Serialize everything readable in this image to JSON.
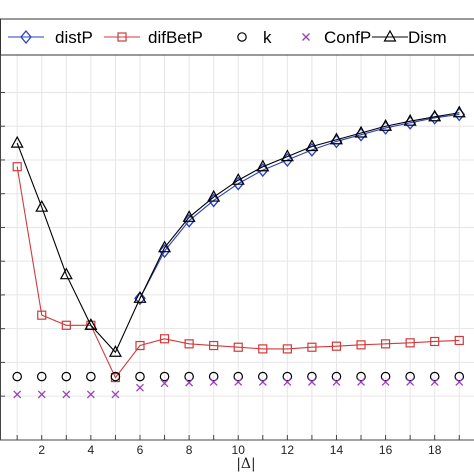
{
  "chart_data": {
    "type": "line",
    "xlabel": "|Δ|",
    "ylabel": "",
    "title": "",
    "xlim": [
      0.3,
      19.6
    ],
    "ylim": [
      -0.03,
      1.12
    ],
    "x_ticks": [
      2,
      4,
      6,
      8,
      10,
      12,
      14,
      16,
      18
    ],
    "x_tick_labels": [
      "2",
      "4",
      "6",
      "8",
      "10",
      "12",
      "14",
      "16",
      "18"
    ],
    "grid": true,
    "legend_position": "top",
    "series": [
      {
        "name": "distP",
        "color": "#2a3fc4",
        "marker": "diamond",
        "x": [
          1,
          2,
          3,
          4,
          5,
          6,
          7,
          8,
          9,
          10,
          11,
          12,
          13,
          14,
          15,
          16,
          17,
          18,
          19
        ],
        "y": [
          null,
          null,
          null,
          null,
          null,
          0.39,
          0.53,
          0.62,
          0.68,
          0.73,
          0.77,
          0.8,
          0.83,
          0.855,
          0.875,
          0.895,
          0.91,
          0.925,
          0.935
        ]
      },
      {
        "name": "difBetP",
        "color": "#d03a3a",
        "marker": "square",
        "x": [
          1,
          2,
          3,
          4,
          5,
          6,
          7,
          8,
          9,
          10,
          11,
          12,
          13,
          14,
          15,
          16,
          17,
          18,
          19
        ],
        "y": [
          0.78,
          0.34,
          0.31,
          0.31,
          0.155,
          0.25,
          0.27,
          0.255,
          0.25,
          0.245,
          0.24,
          0.24,
          0.245,
          0.248,
          0.252,
          0.255,
          0.258,
          0.262,
          0.265
        ]
      },
      {
        "name": "k",
        "color": "#000000",
        "marker": "circle",
        "x": [
          1,
          2,
          3,
          4,
          5,
          6,
          7,
          8,
          9,
          10,
          11,
          12,
          13,
          14,
          15,
          16,
          17,
          18,
          19
        ],
        "y": [
          0.158,
          0.158,
          0.158,
          0.158,
          0.158,
          0.158,
          0.158,
          0.158,
          0.158,
          0.158,
          0.158,
          0.158,
          0.158,
          0.158,
          0.158,
          0.158,
          0.158,
          0.158,
          0.158
        ]
      },
      {
        "name": "ConfP",
        "color": "#9b3fbf",
        "marker": "cross",
        "x": [
          1,
          2,
          3,
          4,
          5,
          6,
          7,
          8,
          9,
          10,
          11,
          12,
          13,
          14,
          15,
          16,
          17,
          18,
          19
        ],
        "y": [
          0.105,
          0.105,
          0.105,
          0.105,
          0.105,
          0.125,
          0.138,
          0.14,
          0.142,
          0.142,
          0.142,
          0.142,
          0.142,
          0.142,
          0.142,
          0.142,
          0.142,
          0.142,
          0.142
        ]
      },
      {
        "name": "Dism",
        "color": "#000000",
        "marker": "triangle",
        "x": [
          1,
          2,
          3,
          4,
          5,
          6,
          7,
          8,
          9,
          10,
          11,
          12,
          13,
          14,
          15,
          16,
          17,
          18,
          19
        ],
        "y": [
          0.85,
          0.66,
          0.46,
          0.31,
          0.23,
          0.39,
          0.54,
          0.63,
          0.69,
          0.74,
          0.78,
          0.81,
          0.84,
          0.86,
          0.88,
          0.9,
          0.915,
          0.928,
          0.94
        ]
      }
    ]
  }
}
